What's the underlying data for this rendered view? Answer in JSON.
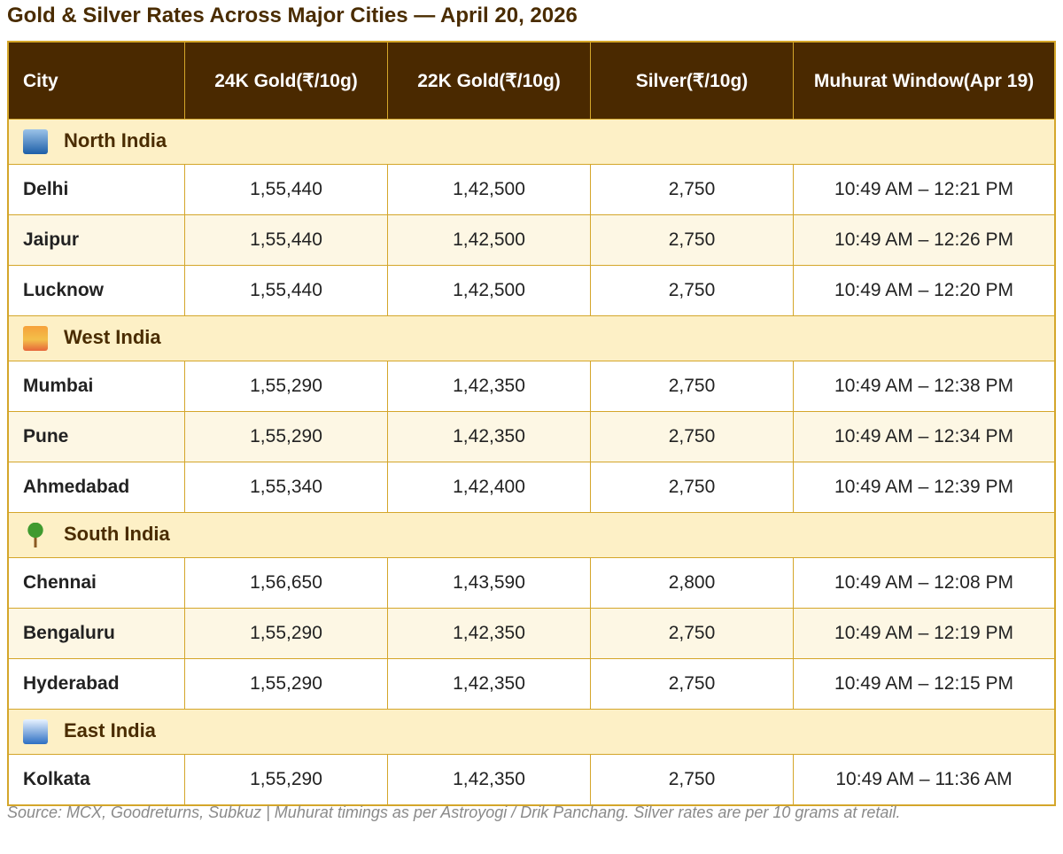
{
  "title": "Gold & Silver Rates Across Major Cities — April 20, 2026",
  "headers": [
    "City",
    "24K Gold(₹/10g)",
    "22K Gold(₹/10g)",
    "Silver(₹/10g)",
    "Muhurat Window(Apr 19)"
  ],
  "regions": [
    {
      "name": "North India",
      "icon": "city-icon",
      "rows": [
        [
          "Delhi",
          "1,55,440",
          "1,42,500",
          "2,750",
          "10:49 AM – 12:21 PM"
        ],
        [
          "Jaipur",
          "1,55,440",
          "1,42,500",
          "2,750",
          "10:49 AM – 12:26 PM"
        ],
        [
          "Lucknow",
          "1,55,440",
          "1,42,500",
          "2,750",
          "10:49 AM – 12:20 PM"
        ]
      ]
    },
    {
      "name": "West India",
      "icon": "sunrise-icon",
      "rows": [
        [
          "Mumbai",
          "1,55,290",
          "1,42,350",
          "2,750",
          "10:49 AM – 12:38 PM"
        ],
        [
          "Pune",
          "1,55,290",
          "1,42,350",
          "2,750",
          "10:49 AM – 12:34 PM"
        ],
        [
          "Ahmedabad",
          "1,55,340",
          "1,42,400",
          "2,750",
          "10:49 AM – 12:39 PM"
        ]
      ]
    },
    {
      "name": "South India",
      "icon": "palm-tree-icon",
      "rows": [
        [
          "Chennai",
          "1,56,650",
          "1,43,590",
          "2,800",
          "10:49 AM – 12:08 PM"
        ],
        [
          "Bengaluru",
          "1,55,290",
          "1,42,350",
          "2,750",
          "10:49 AM – 12:19 PM"
        ],
        [
          "Hyderabad",
          "1,55,290",
          "1,42,350",
          "2,750",
          "10:49 AM – 12:15 PM"
        ]
      ]
    },
    {
      "name": "East India",
      "icon": "wave-icon",
      "rows": [
        [
          "Kolkata",
          "1,55,290",
          "1,42,350",
          "2,750",
          "10:49 AM – 11:36 AM"
        ]
      ]
    }
  ],
  "footer": "Source: MCX, Goodreturns, Subkuz  |  Muhurat timings as per Astroyogi / Drik Panchang. Silver rates are per 10 grams at retail.",
  "colors": {
    "header_bg": "#4a2900",
    "border": "#d4a62a",
    "region_bg": "#fdf0c6",
    "alt_row_bg": "#fdf7e4",
    "title": "#4a2c00"
  }
}
